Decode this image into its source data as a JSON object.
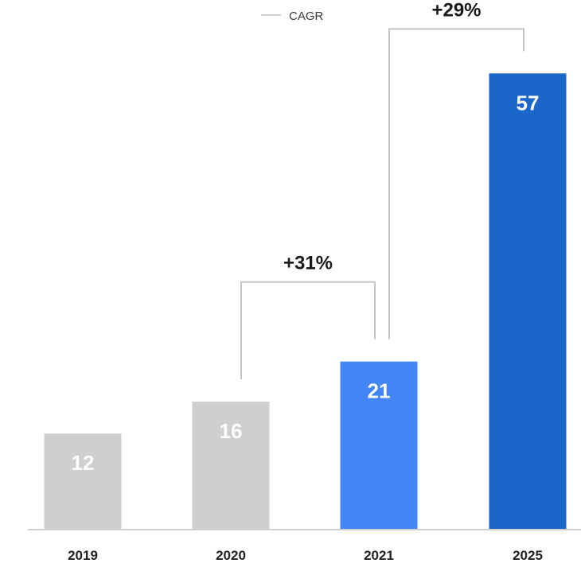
{
  "chart_data": {
    "type": "bar",
    "categories": [
      "2019",
      "2020",
      "2021",
      "2025"
    ],
    "values": [
      12,
      16,
      21,
      57
    ],
    "data_labels": [
      "12",
      "16",
      "21",
      "57"
    ],
    "colors": [
      "#cfcfcf",
      "#cfcfcf",
      "#4285f4",
      "#1a67c9"
    ],
    "ylim": [
      0,
      62
    ],
    "grid": false,
    "legend": {
      "entries": [
        "CAGR"
      ],
      "placement": "top-center",
      "line_color": "#bdbdbd"
    },
    "annotations": [
      {
        "label": "+31%",
        "from": "2020",
        "to": "2021"
      },
      {
        "label": "+29%",
        "from": "2021",
        "to": "2025"
      }
    ],
    "axis_color": "#d0d0d0",
    "bracket_color": "#c4c4c4"
  }
}
